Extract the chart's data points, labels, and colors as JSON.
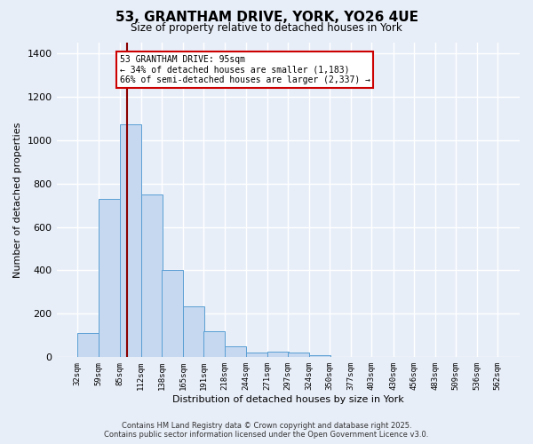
{
  "title": "53, GRANTHAM DRIVE, YORK, YO26 4UE",
  "subtitle": "Size of property relative to detached houses in York",
  "xlabel": "Distribution of detached houses by size in York",
  "ylabel": "Number of detached properties",
  "bins": [
    32,
    59,
    85,
    112,
    138,
    165,
    191,
    218,
    244,
    271,
    297,
    324,
    350,
    377,
    403,
    430,
    456,
    483,
    509,
    536,
    562
  ],
  "counts": [
    110,
    730,
    1070,
    750,
    400,
    235,
    120,
    50,
    20,
    25,
    20,
    10,
    0,
    0,
    0,
    0,
    0,
    0,
    0,
    0
  ],
  "bar_color": "#c5d8f0",
  "bar_edge_color": "#5a9fd4",
  "vline_x": 95,
  "vline_color": "#8b0000",
  "annotation_text": "53 GRANTHAM DRIVE: 95sqm\n← 34% of detached houses are smaller (1,183)\n66% of semi-detached houses are larger (2,337) →",
  "annotation_box_color": "#ffffff",
  "annotation_box_edge": "#cc0000",
  "bg_color": "#e8eef8",
  "grid_color": "#ffffff",
  "ylim": [
    0,
    1450
  ],
  "yticks": [
    0,
    200,
    400,
    600,
    800,
    1000,
    1200,
    1400
  ],
  "footer_line1": "Contains HM Land Registry data © Crown copyright and database right 2025.",
  "footer_line2": "Contains public sector information licensed under the Open Government Licence v3.0."
}
